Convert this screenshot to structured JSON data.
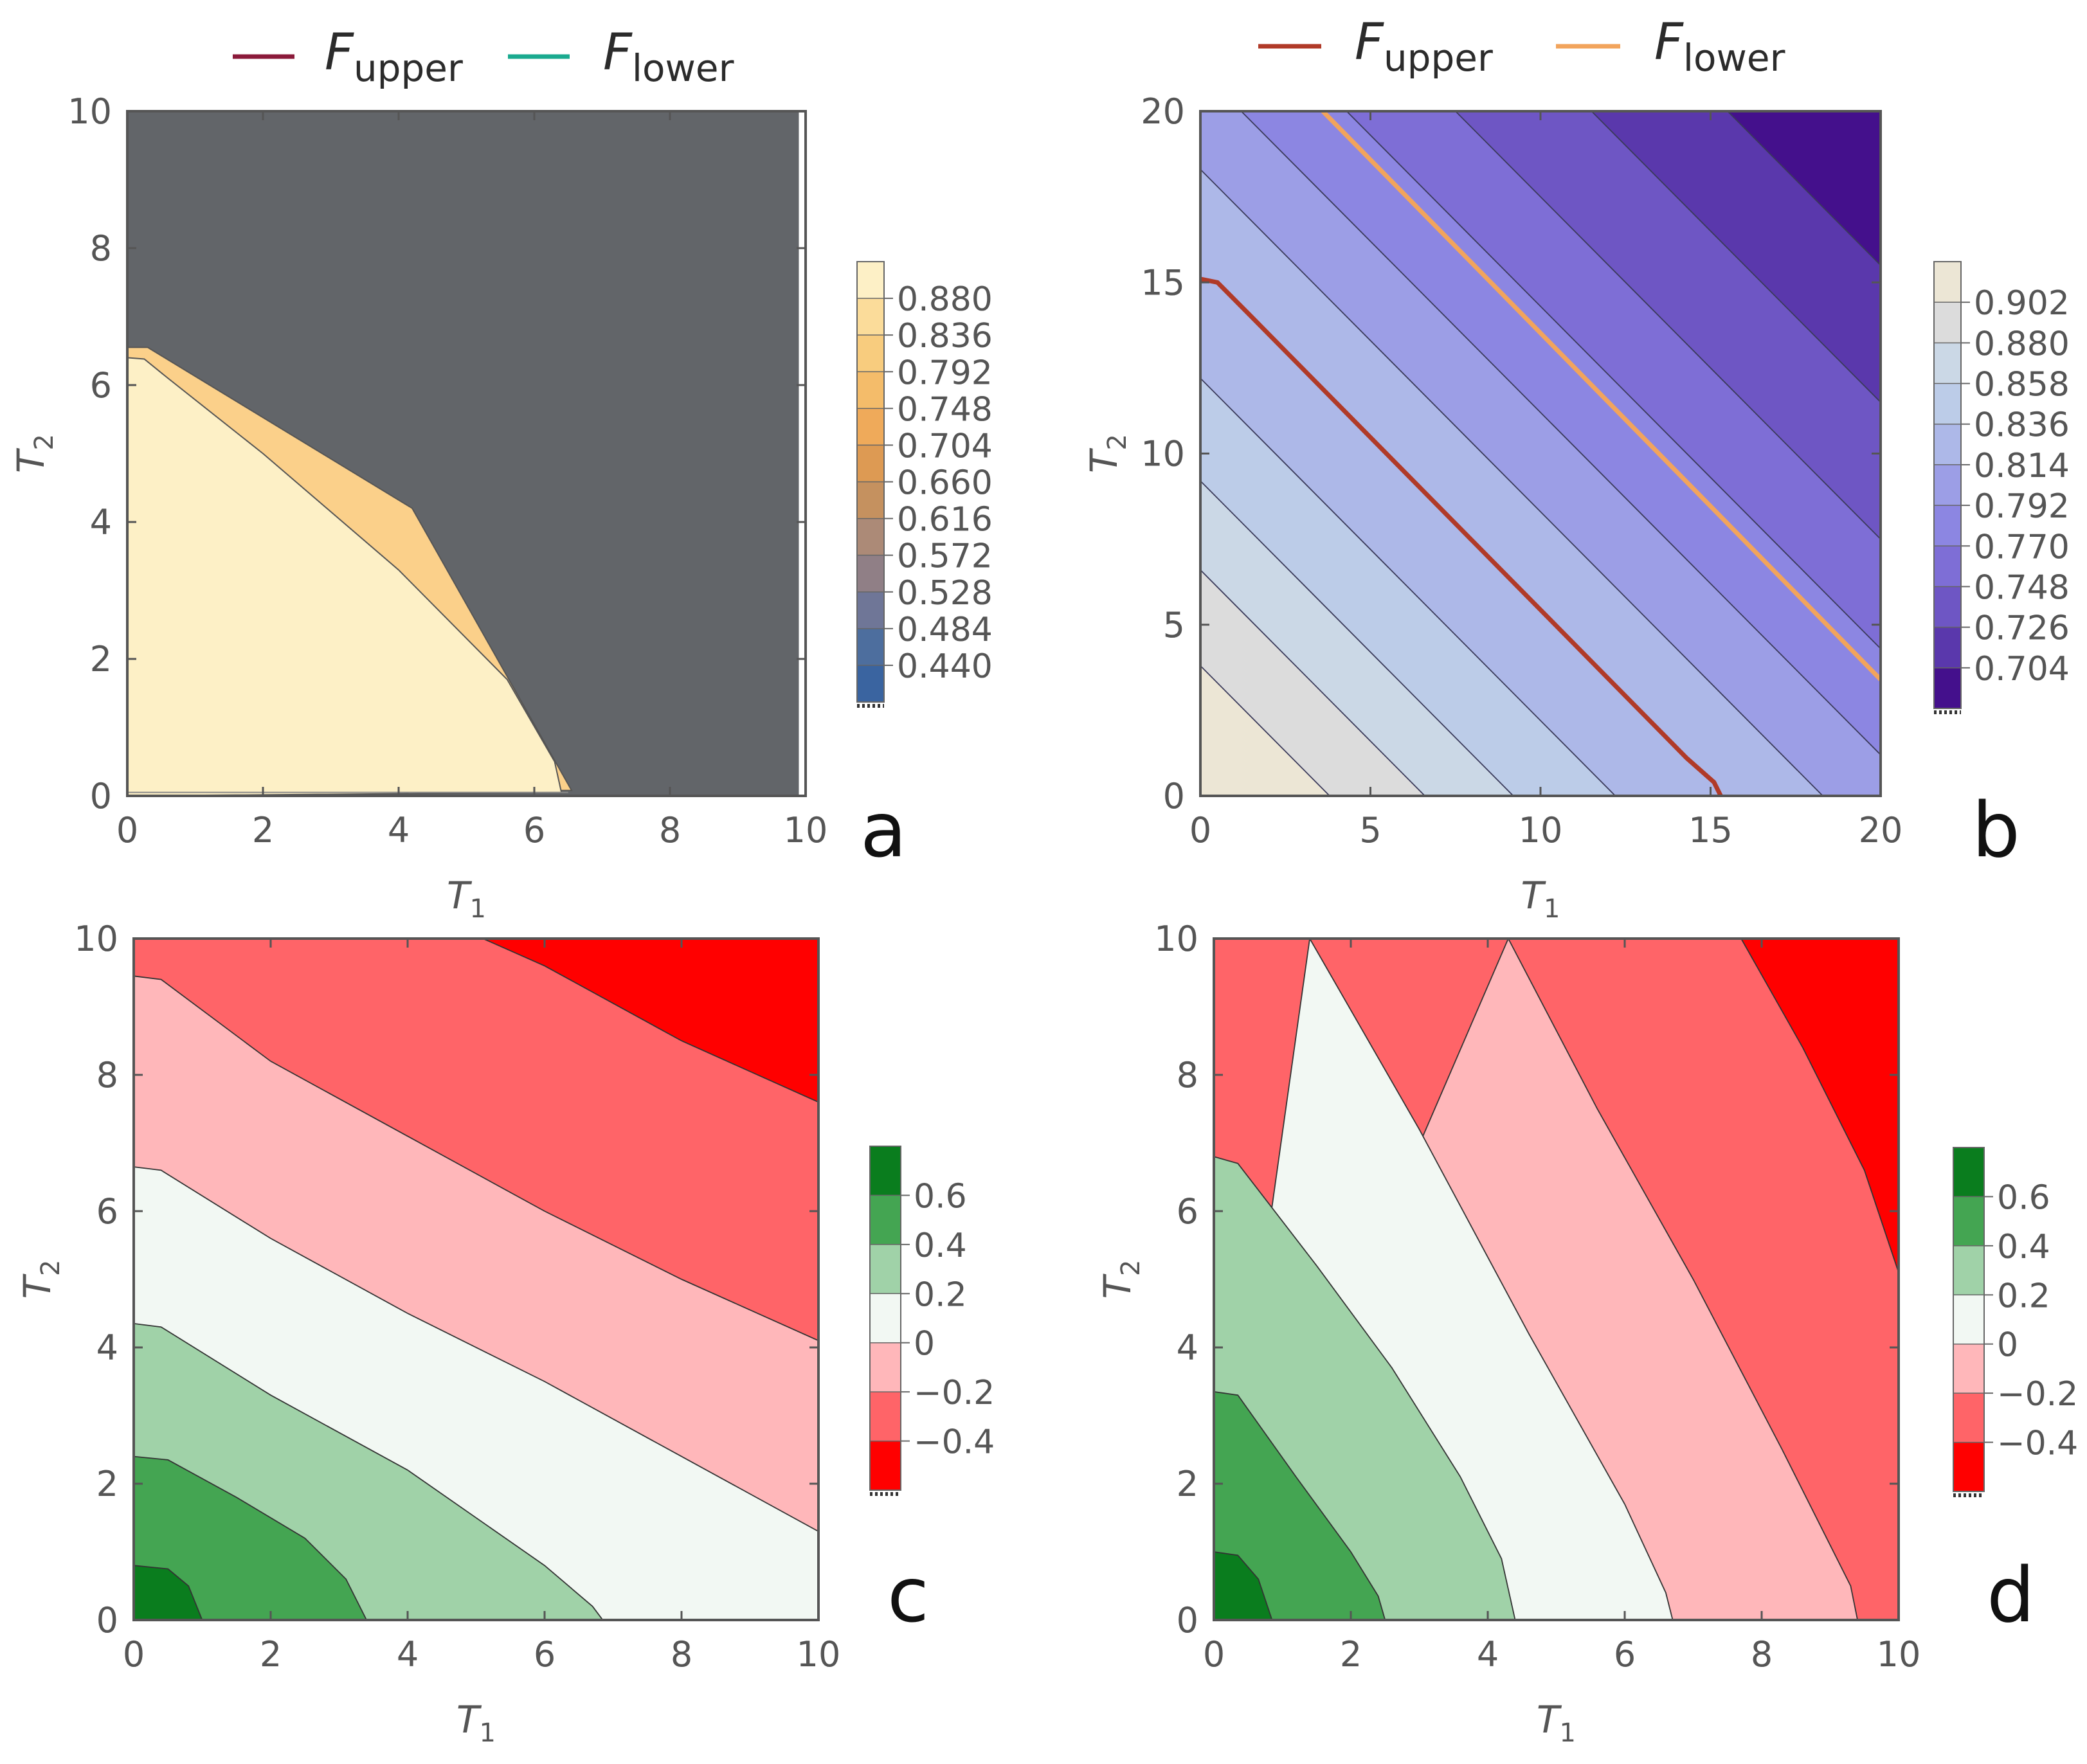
{
  "figure": {
    "panels": [
      {
        "id": "a",
        "panel_label": "a",
        "legend": [
          {
            "main": "F",
            "sub": "upper",
            "color": "#8b1a3a"
          },
          {
            "main": "F",
            "sub": "lower",
            "color": "#1aaa8f"
          }
        ],
        "colorbar_ticks": [
          "0.880",
          "0.836",
          "0.792",
          "0.748",
          "0.704",
          "0.660",
          "0.616",
          "0.572",
          "0.528",
          "0.484",
          "0.440"
        ],
        "colorbar_colors": [
          "#fdf0c6",
          "#fbdc9a",
          "#f8cc7e",
          "#f4bc6a",
          "#efaa5a",
          "#dd9a53",
          "#c5915f",
          "#ac8a77",
          "#907f86",
          "#6f7697",
          "#4d6e9e",
          "#3a64a0"
        ],
        "background_color": "#626569"
      },
      {
        "id": "b",
        "panel_label": "b",
        "legend": [
          {
            "main": "F",
            "sub": "upper",
            "color": "#b03a28"
          },
          {
            "main": "F",
            "sub": "lower",
            "color": "#f2a45c"
          }
        ],
        "colorbar_ticks": [
          "0.902",
          "0.880",
          "0.858",
          "0.836",
          "0.814",
          "0.792",
          "0.770",
          "0.748",
          "0.726",
          "0.704"
        ],
        "colorbar_colors": [
          "#ece6d5",
          "#dcdcdc",
          "#cbd8e6",
          "#bccce8",
          "#adb8e8",
          "#9c9ee6",
          "#8c86e2",
          "#7e6ed6",
          "#6e56c4",
          "#5a38ac",
          "#44108c"
        ]
      },
      {
        "id": "c",
        "panel_label": "c",
        "colorbar_ticks": [
          "0.6",
          "0.4",
          "0.2",
          "0",
          "−0.2",
          "−0.4"
        ],
        "colorbar_colors": [
          "#0a7d1e",
          "#44a552",
          "#a0d2a8",
          "#f2f8f3",
          "#ffb7ba",
          "#ff6468",
          "#ff0000"
        ]
      },
      {
        "id": "d",
        "panel_label": "d",
        "colorbar_ticks": [
          "0.6",
          "0.4",
          "0.2",
          "0",
          "−0.2",
          "−0.4"
        ],
        "colorbar_colors": [
          "#0a7d1e",
          "#44a552",
          "#a0d2a8",
          "#f2f8f3",
          "#ffb7ba",
          "#ff6468",
          "#ff0000"
        ]
      }
    ]
  },
  "chart_data": [
    {
      "panel": "a",
      "type": "contour",
      "xlabel": {
        "main": "T",
        "sub": "1"
      },
      "ylabel": {
        "main": "T",
        "sub": "2"
      },
      "xlim": [
        0,
        10
      ],
      "ylim": [
        0,
        10
      ],
      "x_ticks": [
        "0",
        "2",
        "4",
        "6",
        "8",
        "10"
      ],
      "y_ticks": [
        "0",
        "2",
        "4",
        "6",
        "8",
        "10"
      ],
      "series": [
        {
          "name": "F_upper",
          "color": "#8b1a3a"
        },
        {
          "name": "F_lower",
          "color": "#1aaa8f"
        }
      ],
      "regions": [
        {
          "level": 0.88,
          "color": "#fdf0c6",
          "boundary": [
            [
              0,
              6.4
            ],
            [
              0.25,
              6.38
            ],
            [
              0.6,
              6.1
            ],
            [
              2,
              5.0
            ],
            [
              4,
              3.3
            ],
            [
              5.6,
              1.7
            ],
            [
              6.3,
              0.5
            ],
            [
              6.4,
              0.05
            ]
          ]
        },
        {
          "level": 0.836,
          "color": "#fbd08a",
          "boundary": [
            [
              0,
              6.55
            ],
            [
              0.3,
              6.55
            ],
            [
              4.2,
              4.2
            ],
            [
              6.55,
              0.08
            ]
          ]
        }
      ]
    },
    {
      "panel": "b",
      "type": "contour",
      "xlabel": {
        "main": "T",
        "sub": "1"
      },
      "ylabel": {
        "main": "T",
        "sub": "2"
      },
      "xlim": [
        0,
        20
      ],
      "ylim": [
        0,
        20
      ],
      "x_ticks": [
        "0",
        "5",
        "10",
        "15",
        "20"
      ],
      "y_ticks": [
        "0",
        "5",
        "10",
        "15",
        "20"
      ],
      "series": [
        {
          "name": "F_upper",
          "color": "#b03a28",
          "x": [
            0,
            0.5,
            1.5,
            14.3,
            15.1,
            15.3
          ],
          "y": [
            15.1,
            15.0,
            14.0,
            1.1,
            0.4,
            0
          ]
        },
        {
          "name": "F_lower",
          "color": "#f2a45c",
          "x": [
            3.6,
            20
          ],
          "y": [
            20,
            3.4
          ]
        }
      ],
      "contour_levels": [
        3.8,
        6.6,
        9.2,
        12.2,
        18.3,
        21.2,
        24.3,
        27.5,
        31.5,
        35.5
      ]
    },
    {
      "panel": "c",
      "type": "contour",
      "xlabel": {
        "main": "T",
        "sub": "1"
      },
      "ylabel": {
        "main": "T",
        "sub": "2"
      },
      "xlim": [
        0,
        10
      ],
      "ylim": [
        0,
        10
      ],
      "x_ticks": [
        "0",
        "2",
        "4",
        "6",
        "8",
        "10"
      ],
      "y_ticks": [
        "0",
        "2",
        "4",
        "6",
        "8",
        "10"
      ],
      "contours": [
        {
          "lower": 0.4,
          "upper": 0.6,
          "boundary": [
            [
              0,
              0.8
            ],
            [
              0.5,
              0.75
            ],
            [
              0.8,
              0.5
            ],
            [
              1.0,
              0.0
            ]
          ]
        },
        {
          "lower": 0.2,
          "upper": 0.4,
          "boundary": [
            [
              0,
              2.4
            ],
            [
              0.5,
              2.35
            ],
            [
              1.5,
              1.8
            ],
            [
              2.5,
              1.2
            ],
            [
              3.1,
              0.6
            ],
            [
              3.4,
              0.0
            ]
          ]
        },
        {
          "lower": 0.0,
          "upper": 0.2,
          "boundary": [
            [
              0,
              4.35
            ],
            [
              0.4,
              4.3
            ],
            [
              2,
              3.3
            ],
            [
              4,
              2.2
            ],
            [
              6,
              0.8
            ],
            [
              6.7,
              0.2
            ],
            [
              6.85,
              0.0
            ]
          ]
        },
        {
          "lower": -0.2,
          "upper": 0.0,
          "boundary": [
            [
              0,
              6.65
            ],
            [
              0.4,
              6.6
            ],
            [
              2,
              5.6
            ],
            [
              4,
              4.5
            ],
            [
              6,
              3.5
            ],
            [
              8,
              2.4
            ],
            [
              10,
              1.3
            ]
          ]
        },
        {
          "lower": -0.4,
          "upper": -0.2,
          "boundary": [
            [
              0,
              9.45
            ],
            [
              0.4,
              9.4
            ],
            [
              2,
              8.2
            ],
            [
              4,
              7.1
            ],
            [
              6,
              6.0
            ],
            [
              8,
              5.0
            ],
            [
              10,
              4.1
            ]
          ]
        },
        {
          "lower": -0.6,
          "upper": -0.4,
          "boundary": [
            [
              5.1,
              10.0
            ],
            [
              6,
              9.6
            ],
            [
              8,
              8.5
            ],
            [
              10,
              7.6
            ]
          ]
        }
      ]
    },
    {
      "panel": "d",
      "type": "contour",
      "xlabel": {
        "main": "T",
        "sub": "1"
      },
      "ylabel": {
        "main": "T",
        "sub": "2"
      },
      "xlim": [
        0,
        10
      ],
      "ylim": [
        0,
        10
      ],
      "x_ticks": [
        "0",
        "2",
        "4",
        "6",
        "8",
        "10"
      ],
      "y_ticks": [
        "0",
        "2",
        "4",
        "6",
        "8",
        "10"
      ],
      "contours": [
        {
          "lower": 0.4,
          "upper": 0.6,
          "boundary": [
            [
              0,
              1.0
            ],
            [
              0.35,
              0.95
            ],
            [
              0.65,
              0.6
            ],
            [
              0.85,
              0.0
            ]
          ]
        },
        {
          "lower": 0.2,
          "upper": 0.4,
          "boundary": [
            [
              0,
              3.35
            ],
            [
              0.35,
              3.3
            ],
            [
              1.2,
              2.1
            ],
            [
              2,
              1.0
            ],
            [
              2.4,
              0.35
            ],
            [
              2.5,
              0.0
            ]
          ]
        },
        {
          "lower": 0.0,
          "upper": 0.2,
          "boundary": [
            [
              0,
              6.8
            ],
            [
              0.35,
              6.7
            ],
            [
              1.5,
              5.2
            ],
            [
              2.6,
              3.7
            ],
            [
              3.6,
              2.1
            ],
            [
              4.2,
              0.9
            ],
            [
              4.4,
              0.0
            ]
          ]
        },
        {
          "lower": -0.2,
          "upper": 0.0,
          "boundary": [
            [
              1.4,
              10.0
            ],
            [
              3,
              7.2
            ],
            [
              4.6,
              4.2
            ],
            [
              6,
              1.7
            ],
            [
              6.6,
              0.4
            ],
            [
              6.7,
              0.0
            ]
          ]
        },
        {
          "lower": -0.4,
          "upper": -0.2,
          "boundary": [
            [
              4.3,
              10.0
            ],
            [
              5.6,
              7.5
            ],
            [
              7,
              5.0
            ],
            [
              8.3,
              2.5
            ],
            [
              9.3,
              0.5
            ],
            [
              9.4,
              0.0
            ]
          ]
        },
        {
          "lower": -0.6,
          "upper": -0.4,
          "boundary": [
            [
              7.7,
              10.0
            ],
            [
              8.6,
              8.4
            ],
            [
              9.5,
              6.6
            ],
            [
              10,
              5.1
            ]
          ]
        }
      ]
    }
  ]
}
